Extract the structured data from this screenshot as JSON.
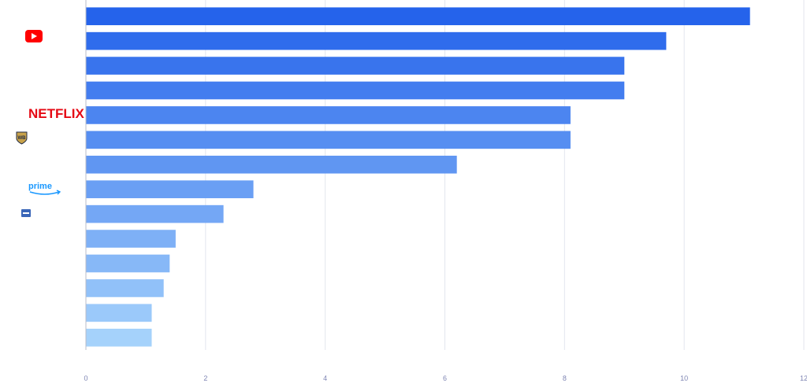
{
  "chart_data": {
    "type": "bar",
    "orientation": "horizontal",
    "categories": [
      "",
      "YouTube",
      "",
      "",
      "Netflix",
      "Warner Bros.",
      "",
      "Prime Video",
      "",
      "",
      "",
      "",
      "",
      ""
    ],
    "values": [
      11.1,
      9.7,
      9.0,
      9.0,
      8.1,
      8.1,
      6.2,
      2.8,
      2.3,
      1.5,
      1.4,
      1.3,
      1.1,
      1.1
    ],
    "xlim": [
      0,
      12
    ],
    "xticks": [
      0,
      2,
      4,
      6,
      8,
      10,
      12
    ],
    "grid": true,
    "legend": "none",
    "title": "",
    "xlabel": "",
    "ylabel": "",
    "colors": {
      "bar_start": "#2563eb",
      "bar_end": "#a5d2fb",
      "grid": "#e3e6ee",
      "axis": "#b8bcc8",
      "tick_text": "#7f86b4"
    },
    "logos": [
      {
        "icon": "youtube-icon",
        "row": 1
      },
      {
        "icon": "netflix-logo",
        "row": 4,
        "text": "NETFLIX"
      },
      {
        "icon": "warner-bros-logo",
        "row": 5
      },
      {
        "icon": "prime-video-logo",
        "row": 7,
        "text": "prime"
      },
      {
        "icon": "studio-logo",
        "row": 8
      }
    ]
  }
}
